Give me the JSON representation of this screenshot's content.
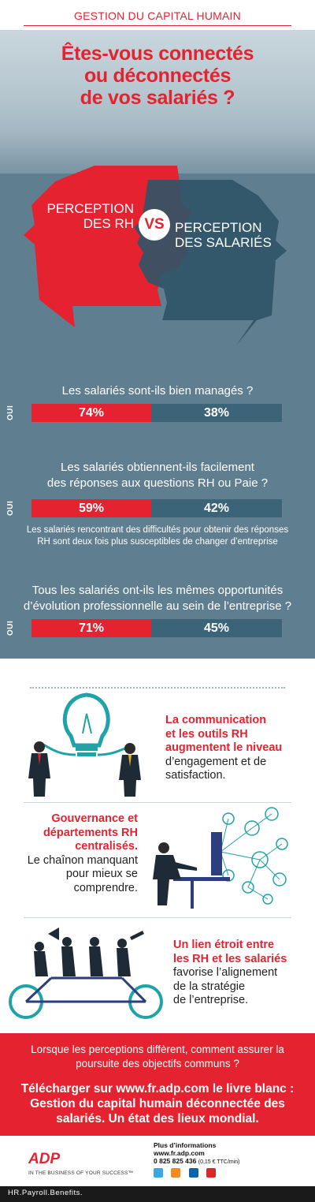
{
  "header": {
    "section": "GESTION DU CAPITAL HUMAIN"
  },
  "hero": {
    "title_lines": [
      "Êtes-vous connectés",
      "ou déconnectés",
      "de vos salariés ?"
    ]
  },
  "heads": {
    "left_lines": [
      "PERCEPTION",
      "DES RH"
    ],
    "vs": "VS",
    "right_lines": [
      "PERCEPTION",
      "DES SALARIÉS"
    ],
    "left_color": "#e52330",
    "right_color": "#2f5468"
  },
  "questions": [
    {
      "lines": [
        "Les salariés sont-ils bien managés ?"
      ],
      "oui": "OUI",
      "rh": "74%",
      "salaries": "38%"
    },
    {
      "lines": [
        "Les salariés obtiennent-ils facilement",
        "des réponses aux questions RH ou Paie ?"
      ],
      "oui": "OUI",
      "rh": "59%",
      "salaries": "42%"
    },
    {
      "lines": [
        "Tous les salariés ont-ils les mêmes opportunités",
        "d’évolution professionnelle au sein de l’entreprise ?"
      ],
      "oui": "OUI",
      "rh": "71%",
      "salaries": "45%"
    }
  ],
  "note": {
    "lines": [
      "Les salariés rencontrant des difficultés pour obtenir des réponses",
      "RH sont deux fois plus susceptibles de changer d’entreprise"
    ]
  },
  "messages": {
    "m1": {
      "red": [
        "La communication",
        "et les outils RH",
        "augmentent le niveau"
      ],
      "plain": [
        "d’engagement et de",
        "satisfaction."
      ]
    },
    "m2": {
      "red": [
        "Gouvernance et",
        "départements RH",
        "centralisés."
      ],
      "plain": [
        "Le chaînon manquant",
        "pour mieux se",
        "comprendre."
      ]
    },
    "m3": {
      "red": [
        "Un lien étroit entre",
        "les RH et les salariés"
      ],
      "plain": [
        "favorise l’alignement",
        "de la stratégie",
        "de l’entreprise."
      ]
    }
  },
  "cta": {
    "question_lines": [
      "Lorsque les perceptions diffèrent, comment assurer la",
      "poursuite des objectifs communs ?"
    ],
    "download_lines": [
      "Télécharger sur www.fr.adp.com le livre blanc :",
      "Gestion du capital humain déconnectée des",
      "salariés. Un état des lieux mondial."
    ]
  },
  "footer": {
    "logo": "ADP",
    "tagline": "IN THE BUSINESS OF YOUR SUCCESS™",
    "more_info": "Plus d’informations",
    "site": "www.fr.adp.com",
    "phone": "0 825 825 436",
    "phone_note": "(0,15 € TTC/min)",
    "social_icons": [
      "twitter-icon",
      "viadeo-icon",
      "linkedin-icon",
      "youtube-icon"
    ],
    "slogan": "HR.Payroll.Benefits."
  }
}
